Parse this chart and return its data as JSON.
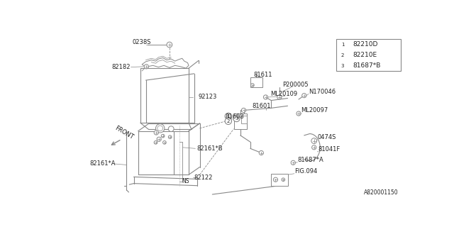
{
  "bg_color": "#ffffff",
  "line_color": "#888888",
  "text_color": "#222222",
  "diagram_id": "A820001150",
  "legend": [
    {
      "num": "1",
      "code": "82210D"
    },
    {
      "num": "2",
      "code": "82210E"
    },
    {
      "num": "3",
      "code": "81687*B"
    }
  ]
}
